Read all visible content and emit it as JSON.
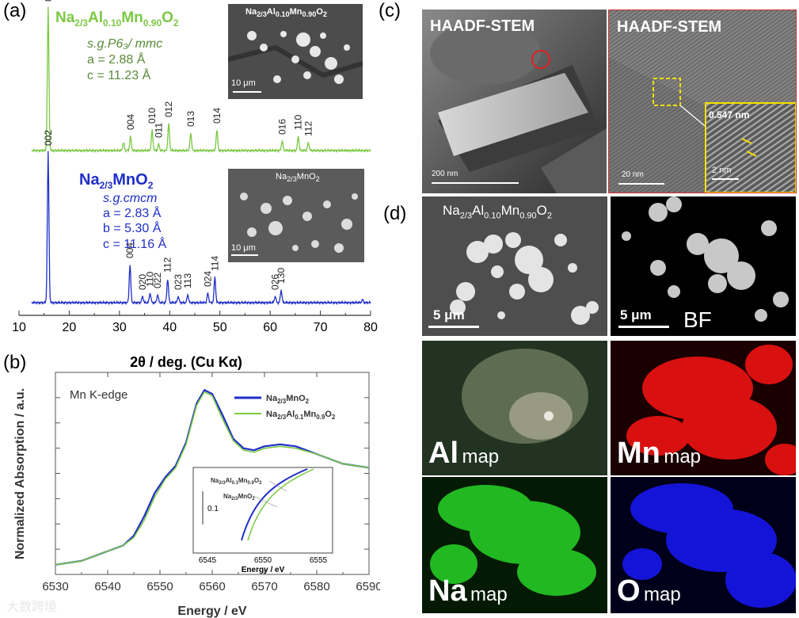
{
  "panels": {
    "a": "(a)",
    "b": "(b)",
    "c": "(c)",
    "d": "(d)"
  },
  "chart_data": [
    {
      "type": "line",
      "xlabel": "2θ / deg. (Cu Kα)",
      "xlim": [
        10,
        80
      ],
      "xticks": [
        "10",
        "20",
        "30",
        "40",
        "50",
        "60",
        "70",
        "80"
      ],
      "series": [
        {
          "name": "Na2/3Al0.10Mn0.90O2",
          "color": "#7ac943",
          "space_group": "s.g.P6₃/ mmc",
          "params": [
            "a = 2.88 Å",
            "c = 11.23 Å"
          ],
          "peaks": [
            {
              "x": 15.8,
              "h": 180,
              "label": "002"
            },
            {
              "x": 30.8,
              "h": 10,
              "label": ""
            },
            {
              "x": 32.2,
              "h": 18,
              "label": "004"
            },
            {
              "x": 36.5,
              "h": 26,
              "label": "010"
            },
            {
              "x": 37.8,
              "h": 8,
              "label": "011"
            },
            {
              "x": 39.8,
              "h": 34,
              "label": "012"
            },
            {
              "x": 44.2,
              "h": 22,
              "label": "013"
            },
            {
              "x": 49.4,
              "h": 26,
              "label": "014"
            },
            {
              "x": 62.4,
              "h": 12,
              "label": "016"
            },
            {
              "x": 65.6,
              "h": 18,
              "label": "110"
            },
            {
              "x": 67.6,
              "h": 10,
              "label": "112"
            }
          ]
        },
        {
          "name": "Na2/3MnO2",
          "color": "#1f2ec9",
          "space_group": "s.g.cmcm",
          "params": [
            "a = 2.83 Å",
            "b = 5.30 Å",
            "c = 11.16 Å"
          ],
          "peaks": [
            {
              "x": 15.8,
              "h": 190,
              "label": "002"
            },
            {
              "x": 32.1,
              "h": 48,
              "label": "004"
            },
            {
              "x": 34.6,
              "h": 8,
              "label": "020"
            },
            {
              "x": 36.1,
              "h": 12,
              "label": "110"
            },
            {
              "x": 37.6,
              "h": 10,
              "label": "022"
            },
            {
              "x": 39.6,
              "h": 30,
              "label": "112"
            },
            {
              "x": 41.7,
              "h": 8,
              "label": "023"
            },
            {
              "x": 43.6,
              "h": 10,
              "label": "113"
            },
            {
              "x": 47.6,
              "h": 12,
              "label": "024"
            },
            {
              "x": 49.0,
              "h": 32,
              "label": "114"
            },
            {
              "x": 61.0,
              "h": 8,
              "label": "026"
            },
            {
              "x": 62.2,
              "h": 16,
              "label": "130"
            },
            {
              "x": 78.4,
              "h": 4,
              "label": ""
            }
          ]
        }
      ]
    },
    {
      "type": "line",
      "title": "Mn K-edge",
      "xlabel": "Energy / eV",
      "ylabel": "Normalized Absorption / a.u.",
      "xlim": [
        6530,
        6590
      ],
      "xticks": [
        "6530",
        "6540",
        "6550",
        "6560",
        "6570",
        "6580",
        "6590"
      ],
      "legend_position": "top-right",
      "series": [
        {
          "name": "Na2/3MnO2",
          "color": "#1f2ec9",
          "x": [
            6530,
            6535,
            6540,
            6543,
            6545,
            6547,
            6549,
            6551,
            6553,
            6555,
            6557,
            6558.5,
            6560,
            6562,
            6564,
            6566,
            6568,
            6570,
            6573,
            6576,
            6580,
            6585,
            6590
          ],
          "y": [
            0.05,
            0.07,
            0.12,
            0.15,
            0.2,
            0.3,
            0.42,
            0.5,
            0.56,
            0.68,
            0.88,
            0.95,
            0.93,
            0.82,
            0.7,
            0.65,
            0.64,
            0.66,
            0.67,
            0.66,
            0.62,
            0.57,
            0.55
          ]
        },
        {
          "name": "Na2/3Al0.1Mn0.9O2",
          "color": "#7ac943",
          "x": [
            6530,
            6535,
            6540,
            6543,
            6545,
            6547,
            6549,
            6551,
            6553,
            6555,
            6557,
            6558.5,
            6560,
            6562,
            6564,
            6566,
            6568,
            6570,
            6573,
            6576,
            6580,
            6585,
            6590
          ],
          "y": [
            0.05,
            0.07,
            0.12,
            0.15,
            0.19,
            0.28,
            0.4,
            0.49,
            0.55,
            0.67,
            0.87,
            0.94,
            0.92,
            0.8,
            0.69,
            0.64,
            0.63,
            0.65,
            0.66,
            0.65,
            0.62,
            0.57,
            0.55
          ]
        }
      ],
      "inset": {
        "xlabel": "Energy / eV",
        "xlim": [
          6545,
          6555
        ],
        "xticks": [
          "6545",
          "6550",
          "6555"
        ],
        "scale_label": "0.1",
        "labels": [
          "Na2/3Al0.1Mn0.9O2",
          "Na2/3MnO2"
        ]
      }
    }
  ],
  "sem": {
    "al_title": "Na2/3Al0.10Mn0.90O2",
    "al_scale": "10 μm",
    "mn_title": "Na2/3MnO2",
    "mn_scale": "10 μm"
  },
  "stem": {
    "left_title": "HAADF-STEM",
    "left_scale": "200 nm",
    "right_title": "HAADF-STEM",
    "right_scale": "20 nm",
    "inset_spacing": "0.547 nm",
    "inset_scale": "2 nm"
  },
  "eds": {
    "sample_title": "Na2/3Al0.10Mn0.90O2",
    "sample_scale": "5 μm",
    "bf_scale": "5 μm",
    "bf_label": "BF",
    "maps": [
      {
        "element": "Al",
        "suffix": "map",
        "color": "#4a5a40"
      },
      {
        "element": "Mn",
        "suffix": "map",
        "color": "#e01010"
      },
      {
        "element": "Na",
        "suffix": "map",
        "color": "#1cc01c"
      },
      {
        "element": "O",
        "suffix": "map",
        "color": "#1515d8"
      }
    ]
  },
  "watermark": "大数跨境"
}
